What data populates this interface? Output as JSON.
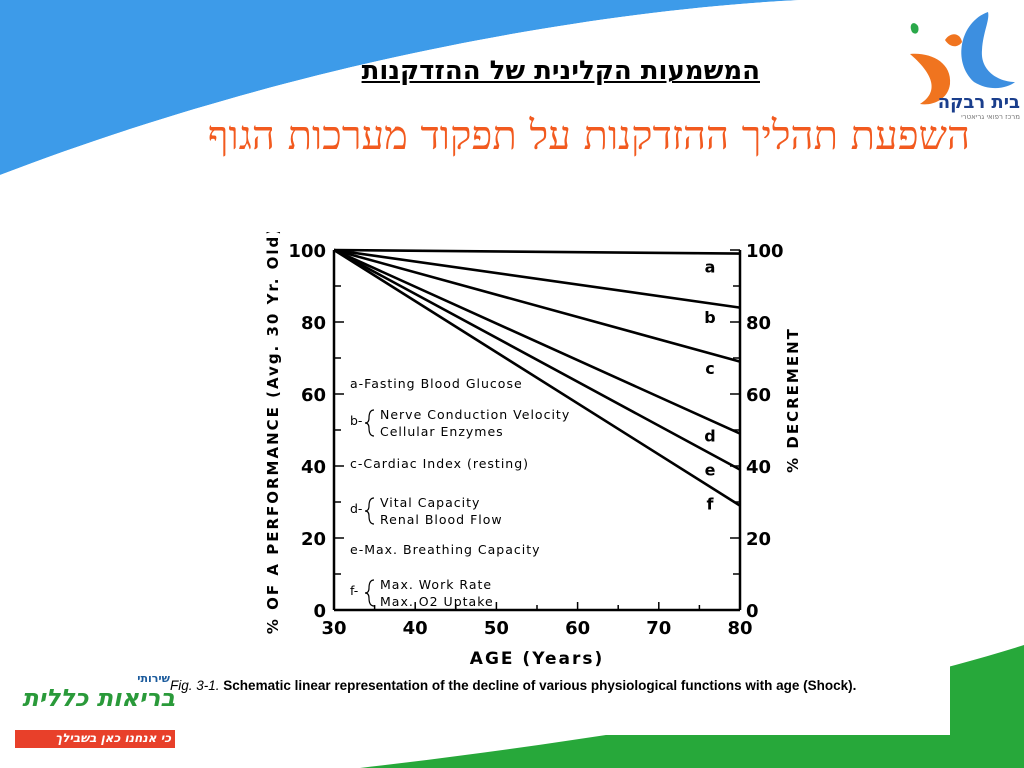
{
  "header": {
    "title": "המשמעות הקלינית של ההזדקנות",
    "subtitle": "השפעת תהליך ההזדקנות על תפקוד מערכות הגוף"
  },
  "logo_top": {
    "name": "בית רבקה",
    "tagline": "מרכז רפואי גריאטרי"
  },
  "logo_bottom": {
    "small": "שירותי",
    "name": "בריאות כללית",
    "slogan": "כי אנחנו כאן בשבילך"
  },
  "caption": {
    "fig": "Fig. 3-1.",
    "text": "Schematic linear representation of the decline of various physiological functions with age (Shock)."
  },
  "colors": {
    "accent_orange": "#f25a1f",
    "header_blue": "#3d9be9",
    "green": "#27a83a",
    "logo_blue": "#1a3e8c"
  },
  "chart_data": {
    "type": "line",
    "xlabel": "AGE (Years)",
    "ylabel": "% OF A PERFORMANCE (Avg. 30 Yr. Old)",
    "ylabel_right": "% DECREMENT",
    "xlim": [
      30,
      80
    ],
    "ylim": [
      0,
      100
    ],
    "xticks": [
      30,
      40,
      50,
      60,
      70,
      80
    ],
    "yticks": [
      0,
      20,
      40,
      60,
      80,
      100
    ],
    "yticks_right": [
      100,
      80,
      60,
      40,
      20,
      0
    ],
    "series": [
      {
        "name": "a",
        "x": [
          30,
          80
        ],
        "y": [
          100,
          99
        ]
      },
      {
        "name": "b",
        "x": [
          30,
          80
        ],
        "y": [
          100,
          84
        ]
      },
      {
        "name": "c",
        "x": [
          30,
          80
        ],
        "y": [
          100,
          69
        ]
      },
      {
        "name": "d",
        "x": [
          30,
          80
        ],
        "y": [
          100,
          49
        ]
      },
      {
        "name": "e",
        "x": [
          30,
          80
        ],
        "y": [
          100,
          39
        ]
      },
      {
        "name": "f",
        "x": [
          30,
          80
        ],
        "y": [
          100,
          29
        ]
      }
    ],
    "legend": [
      {
        "key": "a",
        "lines": [
          "Fasting Blood Glucose"
        ]
      },
      {
        "key": "b",
        "lines": [
          "Nerve Conduction Velocity",
          "Cellular Enzymes"
        ]
      },
      {
        "key": "c",
        "lines": [
          "Cardiac Index (resting)"
        ]
      },
      {
        "key": "d",
        "lines": [
          "Vital Capacity",
          "Renal Blood Flow"
        ]
      },
      {
        "key": "e",
        "lines": [
          "Max. Breathing Capacity"
        ]
      },
      {
        "key": "f",
        "lines": [
          "Max. Work Rate",
          "Max. O2 Uptake"
        ]
      }
    ]
  }
}
